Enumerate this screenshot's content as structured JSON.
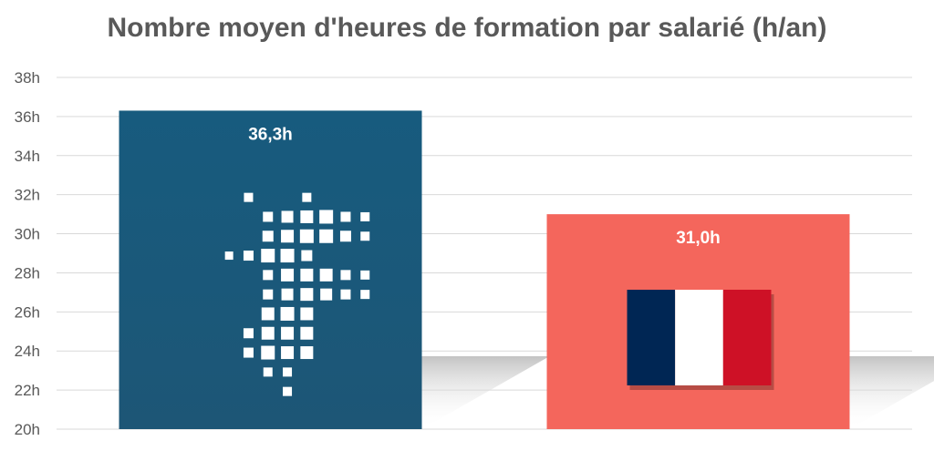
{
  "chart_data": {
    "type": "bar",
    "title": "Nombre moyen d'heures de formation par salarié (h/an)",
    "xlabel": "",
    "ylabel": "",
    "categories": [
      "",
      ""
    ],
    "values": [
      36.3,
      31.0
    ],
    "data_labels": [
      "36,3h",
      "31,0h"
    ],
    "ylim": [
      20,
      38
    ],
    "yticks": [
      20,
      22,
      24,
      26,
      28,
      30,
      32,
      34,
      36,
      38
    ],
    "ytick_labels": [
      "20h",
      "22h",
      "24h",
      "26h",
      "28h",
      "30h",
      "32h",
      "34h",
      "36h",
      "38h"
    ],
    "grid": true,
    "legend": "none",
    "bar_colors": [
      "#1a5a7d",
      "#f4665c"
    ],
    "icons": [
      "region-map-icon",
      "france-flag-icon"
    ]
  },
  "colors": {
    "grid": "#d9d9d9",
    "text": "#595959",
    "flag_blue": "#002654",
    "flag_white": "#ffffff",
    "flag_red": "#ce1126"
  }
}
